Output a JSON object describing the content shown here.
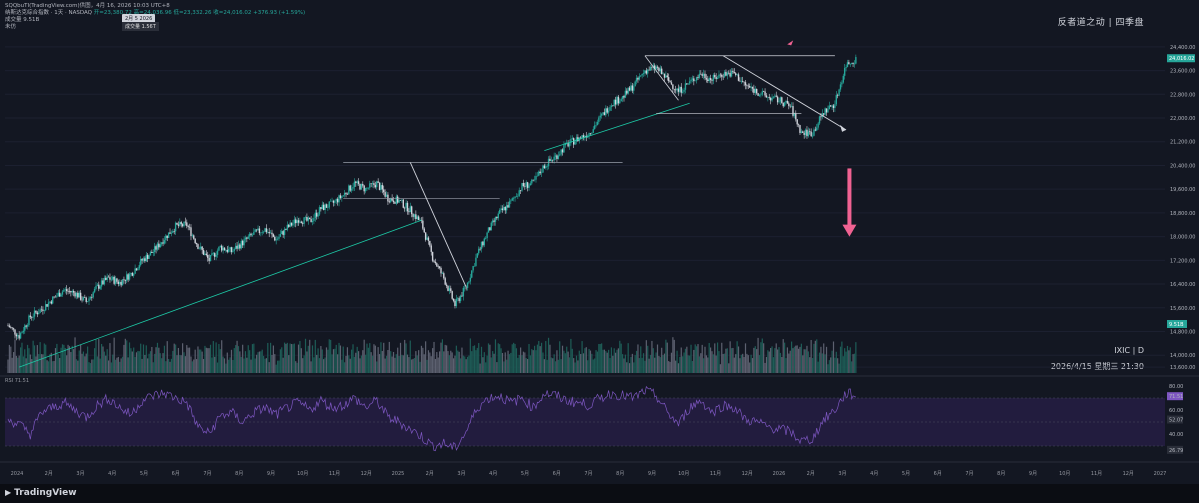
{
  "header": {
    "source": "SQQbuTI(TradingView.com)供图，4月 16, 2026 10:03 UTC+8",
    "symbol_line": "纳斯达克综合指数 · 1天 · NASDAQ",
    "ohlc_text": "开=23,380.72 高=24,036.96 低=23,332.26 收=24,016.02 +376.93 (+1.59%)",
    "volume_line": "成交量  9.51B",
    "vwap_line": "未仿"
  },
  "tooltip": {
    "date": "2月 5 2026",
    "volume": "成交量  1.56T"
  },
  "brand": "反者道之动 | 四季盘",
  "watermark": {
    "ticker": "IXIC | D",
    "datetime": "2026/4/15 星期三 21:30"
  },
  "rsi_label": "RSI 71.51",
  "footer_logo": "TradingView",
  "colors": {
    "background": "#131722",
    "candle_up": "#26a69a",
    "candle_down": "#d1d4dc",
    "rsi_line": "#7e57c2",
    "rsi_band": "#2a1f4a",
    "trend_line": "#1dc9a6",
    "arrow_pink": "#f06292"
  },
  "chart_data": [
    {
      "type": "line",
      "title": "",
      "x_ticks": [
        "2024",
        "2月",
        "3月",
        "4月",
        "5月",
        "6月",
        "7月",
        "8月",
        "9月",
        "10月",
        "11月",
        "12月",
        "2025",
        "2月",
        "3月",
        "4月",
        "5月",
        "6月",
        "7月",
        "8月",
        "9月",
        "10月",
        "11月",
        "12月",
        "2026",
        "2月",
        "3月",
        "4月",
        "5月",
        "6月",
        "7月",
        "8月",
        "9月",
        "10月",
        "11月",
        "12月",
        "2027"
      ],
      "y_ticks": [
        24400,
        23600,
        22800,
        22000,
        21200,
        20400,
        19600,
        18800,
        18000,
        17200,
        16400,
        15600,
        14800,
        14000,
        13600
      ],
      "y_tick_labels": [
        "24,400.00",
        "23,600.00",
        "22,800.00",
        "22,000.00",
        "21,200.00",
        "20,400.00",
        "19,600.00",
        "18,800.00",
        "18,000.00",
        "17,200.00",
        "16,400.00",
        "15,600.00",
        "14,800.00",
        "14,000.00",
        "13,600.00"
      ],
      "ylim": [
        13400,
        24800
      ],
      "last_price": 24016.02,
      "last_price_label": "24,016.02",
      "last_volume_label": "9.51B",
      "series": [
        {
          "values": [
            15000,
            14650,
            15300,
            15550,
            15900,
            16200,
            16100,
            15800,
            16300,
            16600,
            16450,
            16750,
            17200,
            17500,
            17950,
            18350,
            18400,
            17700,
            17200,
            17650,
            17500,
            17800,
            18100,
            18250,
            17900,
            18300,
            18600,
            18500,
            18950,
            19100,
            19400,
            19800,
            19600,
            19800,
            19300,
            19200,
            18900,
            18450,
            17300,
            16600,
            15700,
            16300,
            17400,
            18200,
            18800,
            19150,
            19700,
            19800,
            20400,
            20700,
            21100,
            21300,
            21500,
            22000,
            22500,
            22700,
            23100,
            23600,
            23700,
            23300,
            22900,
            23200,
            23500,
            23300,
            23500,
            23500,
            23100,
            22900,
            22700,
            22600,
            22400,
            21500,
            21500,
            22200,
            22500,
            23800,
            24016
          ]
        }
      ],
      "annotations": [
        {
          "label": "down arrow",
          "color": "pink"
        },
        {
          "label": "resistance 24,100"
        },
        {
          "label": "support 20,500"
        },
        {
          "label": "support 22,150"
        },
        {
          "label": "support 19,250"
        }
      ]
    },
    {
      "type": "line",
      "title": "",
      "ylim": [
        20,
        85
      ],
      "y_tick_labels": [
        "80.00",
        "71.51",
        "60.00",
        "52.07",
        "40.00",
        "26.79"
      ],
      "y_ticks": [
        80,
        71.51,
        60,
        52.07,
        40,
        26.79
      ],
      "band": [
        30,
        70
      ],
      "series": [
        {
          "name": "RSI",
          "values": [
            52,
            48,
            40,
            58,
            62,
            66,
            60,
            54,
            64,
            70,
            62,
            56,
            68,
            72,
            74,
            70,
            66,
            46,
            40,
            55,
            58,
            50,
            58,
            62,
            56,
            62,
            66,
            60,
            68,
            62,
            64,
            70,
            62,
            68,
            54,
            50,
            44,
            38,
            30,
            32,
            28,
            42,
            62,
            70,
            72,
            66,
            70,
            62,
            74,
            72,
            68,
            66,
            64,
            70,
            74,
            72,
            70,
            76,
            72,
            58,
            48,
            62,
            68,
            58,
            64,
            62,
            52,
            50,
            46,
            44,
            42,
            34,
            36,
            52,
            60,
            74,
            72
          ]
        }
      ]
    }
  ]
}
